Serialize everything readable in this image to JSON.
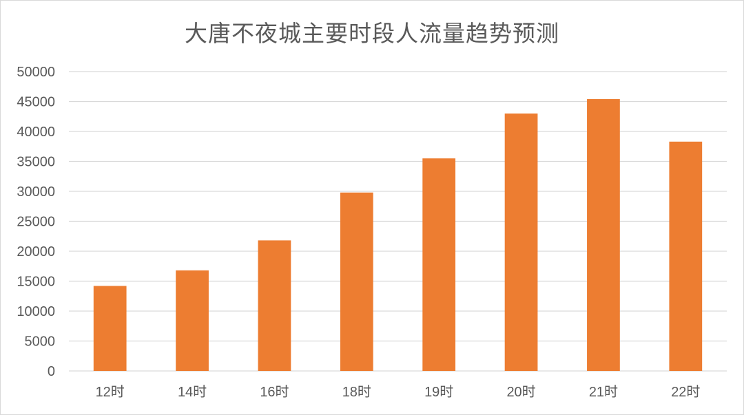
{
  "chart_data": {
    "type": "bar",
    "title": "大唐不夜城主要时段人流量趋势预测",
    "xlabel": "",
    "ylabel": "",
    "categories": [
      "12时",
      "14时",
      "16时",
      "18时",
      "19时",
      "20时",
      "21时",
      "22时"
    ],
    "values": [
      14200,
      16800,
      21800,
      29800,
      35500,
      43000,
      45400,
      38300
    ],
    "ylim": [
      0,
      50000
    ],
    "yticks": [
      "0",
      "5000",
      "10000",
      "15000",
      "20000",
      "25000",
      "30000",
      "35000",
      "40000",
      "45000",
      "50000"
    ],
    "grid": true,
    "legend": "none",
    "bar_color": "#ed7d31",
    "grid_color": "#d9d9d9",
    "text_color": "#595959"
  }
}
